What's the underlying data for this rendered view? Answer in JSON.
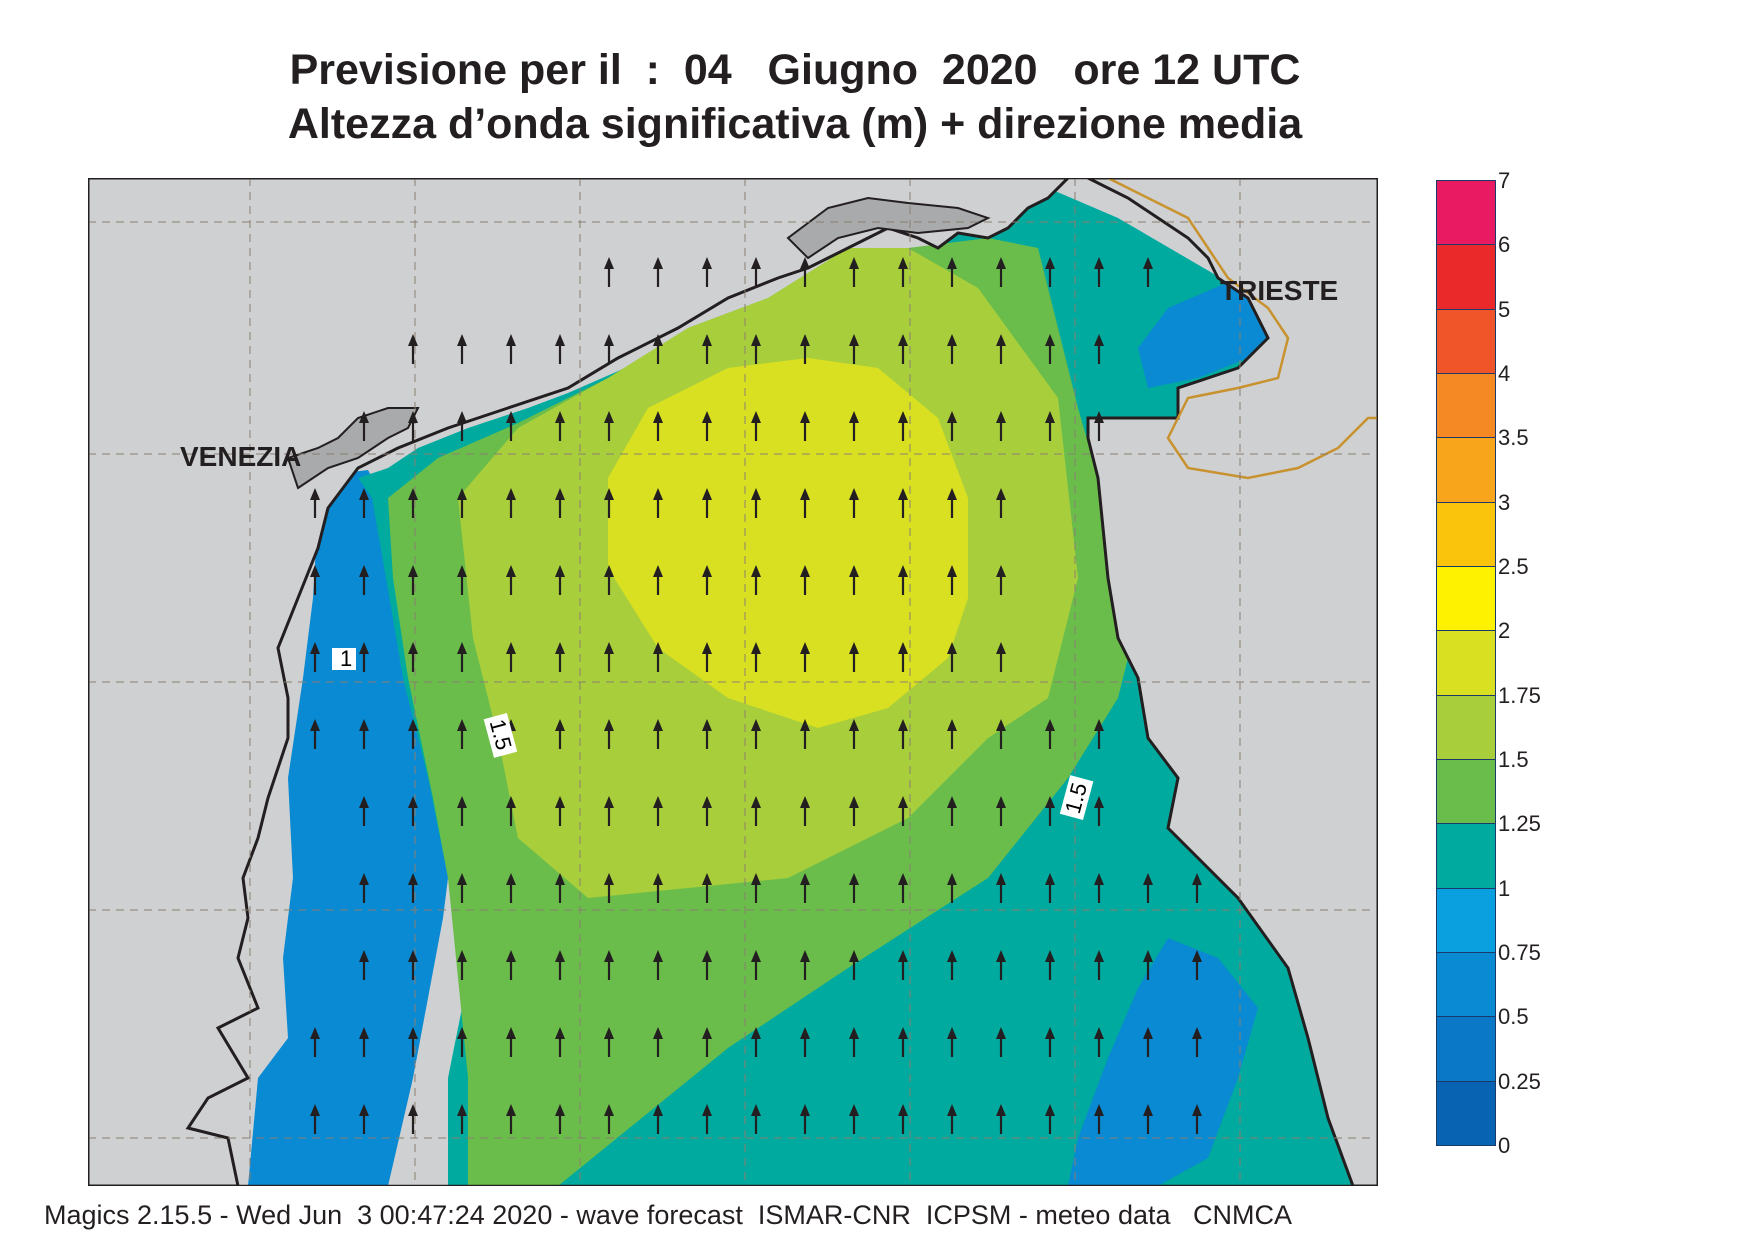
{
  "title_line1": "Previsione per il  :  04   Giugno  2020   ore 12 UTC",
  "title_line2": "Altezza d’onda significativa (m) + direzione media",
  "footer": "Magics 2.15.5 - Wed Jun  3 00:47:24 2020 - wave forecast  ISMAR-CNR  ICPSM - meteo data   CNMCA",
  "map": {
    "cities": [
      "VENEZIA",
      "TRIESTE"
    ],
    "contour_labels": [
      "1",
      "1.5",
      "1.5"
    ],
    "arrow_direction": "north",
    "colors": {
      "land": "#cfd0d2",
      "land_dark": "#a8aaac",
      "coastline": "#231f20",
      "border": "#c8922e",
      "grid": "#8a7f70"
    }
  },
  "legend": {
    "labels": [
      "7",
      "6",
      "5",
      "4",
      "3.5",
      "3",
      "2.5",
      "2",
      "1.75",
      "1.5",
      "1.25",
      "1",
      "0.75",
      "0.5",
      "0.25",
      "0"
    ],
    "colors": [
      "#ea1a62",
      "#ea2a2a",
      "#ef5528",
      "#f58a24",
      "#f8a51c",
      "#fbc40c",
      "#fff200",
      "#d9e021",
      "#a8cf3b",
      "#6bbd4b",
      "#00aa9e",
      "#0aa0e0",
      "#0a8ad2",
      "#0a78c6",
      "#0864b2"
    ]
  }
}
